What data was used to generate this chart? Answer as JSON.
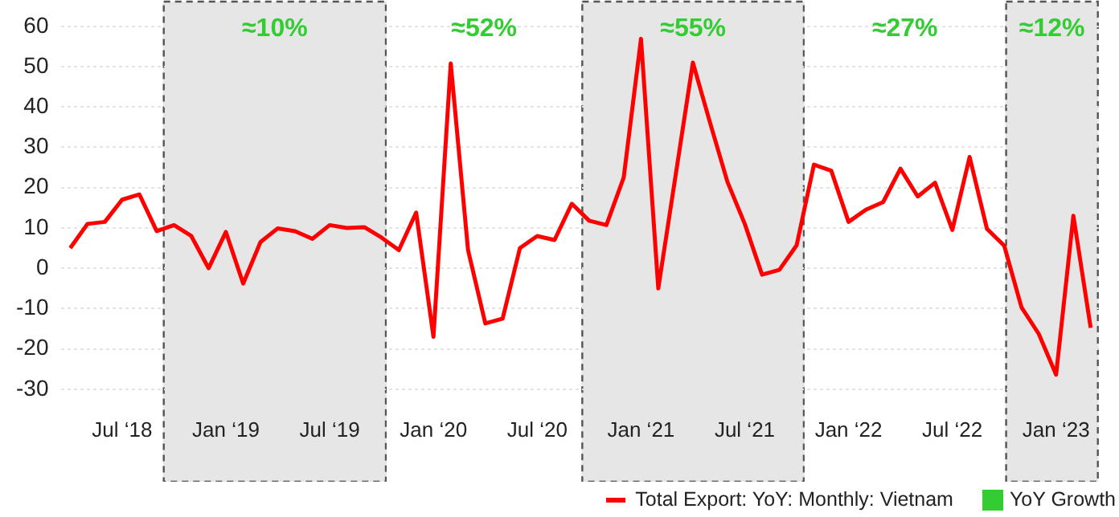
{
  "chart_data": {
    "type": "line",
    "x": [
      "2018-04",
      "2018-05",
      "2018-06",
      "2018-07",
      "2018-08",
      "2018-09",
      "2018-10",
      "2018-11",
      "2018-12",
      "2019-01",
      "2019-02",
      "2019-03",
      "2019-04",
      "2019-05",
      "2019-06",
      "2019-07",
      "2019-08",
      "2019-09",
      "2019-10",
      "2019-11",
      "2019-12",
      "2020-01",
      "2020-02",
      "2020-03",
      "2020-04",
      "2020-05",
      "2020-06",
      "2020-07",
      "2020-08",
      "2020-09",
      "2020-10",
      "2020-11",
      "2020-12",
      "2021-01",
      "2021-02",
      "2021-03",
      "2021-04",
      "2021-05",
      "2021-06",
      "2021-07",
      "2021-08",
      "2021-09",
      "2021-10",
      "2021-11",
      "2021-12",
      "2022-01",
      "2022-02",
      "2022-03",
      "2022-04",
      "2022-05",
      "2022-06",
      "2022-07",
      "2022-08",
      "2022-09",
      "2022-10",
      "2022-11",
      "2022-12",
      "2023-01",
      "2023-02",
      "2023-03"
    ],
    "series": [
      {
        "name": "Total Export: YoY: Monthly: Vietnam",
        "color": "#ff0000",
        "values": [
          5,
          11,
          11.5,
          17,
          18.3,
          9.2,
          10.7,
          8,
          0,
          9,
          -3.8,
          6.5,
          9.9,
          9.2,
          7.3,
          10.7,
          10,
          10.2,
          7.6,
          4.5,
          13.8,
          -17,
          50.8,
          4.5,
          -13.7,
          -12.5,
          5,
          8,
          7,
          16,
          11.8,
          10.7,
          22.5,
          56.9,
          -5,
          23,
          51,
          36,
          21.4,
          11,
          -1.6,
          -0.4,
          5.7,
          25.7,
          24.2,
          11.5,
          14.5,
          16.4,
          24.7,
          17.8,
          21.2,
          9.5,
          27.6,
          9.8,
          5.6,
          -9.7,
          -16.3,
          -26.4,
          13,
          -14.8
        ]
      }
    ],
    "xlim": [
      "2018-03-16",
      "2023-03-15"
    ],
    "xticks": [
      {
        "value": "2018-07",
        "label": "Jul ‘18"
      },
      {
        "value": "2019-01",
        "label": "Jan ‘19"
      },
      {
        "value": "2019-07",
        "label": "Jul ‘19"
      },
      {
        "value": "2020-01",
        "label": "Jan ‘20"
      },
      {
        "value": "2020-07",
        "label": "Jul ‘20"
      },
      {
        "value": "2021-01",
        "label": "Jan ‘21"
      },
      {
        "value": "2021-07",
        "label": "Jul ‘21"
      },
      {
        "value": "2022-01",
        "label": "Jan ‘22"
      },
      {
        "value": "2022-07",
        "label": "Jul ‘22"
      },
      {
        "value": "2023-01",
        "label": "Jan ‘23"
      }
    ],
    "ylim": [
      -30,
      60
    ],
    "yticks": [
      -30,
      -20,
      -10,
      0,
      10,
      20,
      30,
      40,
      50,
      60
    ],
    "bands": [
      {
        "axis": "x",
        "from": "2018-09-12",
        "to": "2019-10-10",
        "label": "≈10%",
        "color": "#e6e6e6"
      },
      {
        "axis": "x",
        "from": "2019-10-10",
        "to": "2020-09-18",
        "label": "≈52%",
        "color": "#ffffff"
      },
      {
        "axis": "x",
        "from": "2020-09-18",
        "to": "2021-10-15",
        "label": "≈55%",
        "color": "#e6e6e6"
      },
      {
        "axis": "x",
        "from": "2021-10-15",
        "to": "2022-10-03",
        "label": "≈27%",
        "color": "#ffffff"
      },
      {
        "axis": "x",
        "from": "2022-10-03",
        "to": "2023-03-15",
        "label": "≈12%",
        "color": "#e6e6e6"
      }
    ],
    "annotations": [
      "YoY Growth"
    ],
    "grid": "y",
    "legend": "bottom right",
    "marker": "none",
    "line_style": "solid"
  }
}
